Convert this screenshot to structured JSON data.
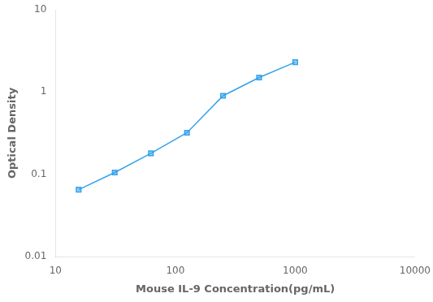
{
  "chart_data": {
    "type": "line",
    "x": [
      15.6,
      31.2,
      62.5,
      125,
      250,
      500,
      1000
    ],
    "values": [
      0.065,
      0.105,
      0.18,
      0.32,
      0.9,
      1.5,
      2.3
    ],
    "xlabel": "Mouse IL-9 Concentration(pg/mL)",
    "ylabel": "Optical Density",
    "log": true,
    "xlim": [
      10,
      10000
    ],
    "ylim": [
      0.01,
      10
    ],
    "xticks": [
      10,
      100,
      1000,
      10000
    ],
    "yticks": [
      0.01,
      0.1,
      1,
      10
    ],
    "grid": false,
    "marker": "square"
  }
}
